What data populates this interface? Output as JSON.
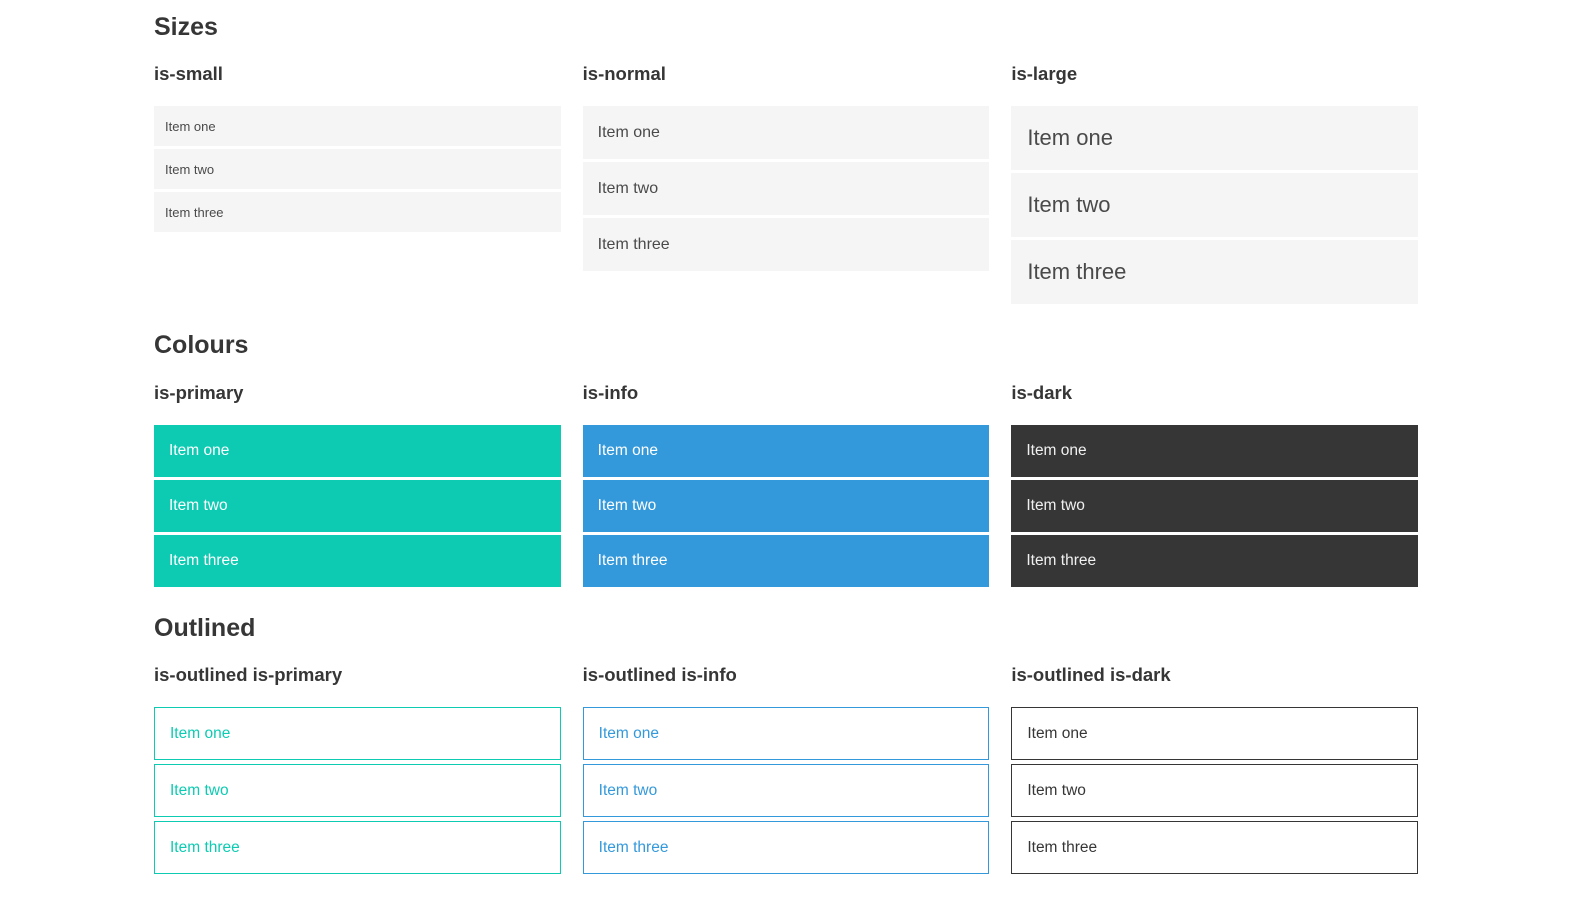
{
  "colors": {
    "primary": "#0dcbb2",
    "info": "#3499db",
    "dark": "#363636",
    "light": "#f5f5f5",
    "item-text": "#4a4a4a",
    "heading": "#363636",
    "white": "#ffffff"
  },
  "sections": [
    {
      "title": "Sizes",
      "groups": [
        {
          "heading": "is-small",
          "items": [
            "Item one",
            "Item two",
            "Item three"
          ]
        },
        {
          "heading": "is-normal",
          "items": [
            "Item one",
            "Item two",
            "Item three"
          ]
        },
        {
          "heading": "is-large",
          "items": [
            "Item one",
            "Item two",
            "Item three"
          ]
        }
      ]
    },
    {
      "title": "Colours",
      "groups": [
        {
          "heading": "is-primary",
          "items": [
            "Item one",
            "Item two",
            "Item three"
          ]
        },
        {
          "heading": "is-info",
          "items": [
            "Item one",
            "Item two",
            "Item three"
          ]
        },
        {
          "heading": "is-dark",
          "items": [
            "Item one",
            "Item two",
            "Item three"
          ]
        }
      ]
    },
    {
      "title": "Outlined",
      "groups": [
        {
          "heading": "is-outlined is-primary",
          "items": [
            "Item one",
            "Item two",
            "Item three"
          ]
        },
        {
          "heading": "is-outlined is-info",
          "items": [
            "Item one",
            "Item two",
            "Item three"
          ]
        },
        {
          "heading": "is-outlined is-dark",
          "items": [
            "Item one",
            "Item two",
            "Item three"
          ]
        }
      ]
    }
  ]
}
